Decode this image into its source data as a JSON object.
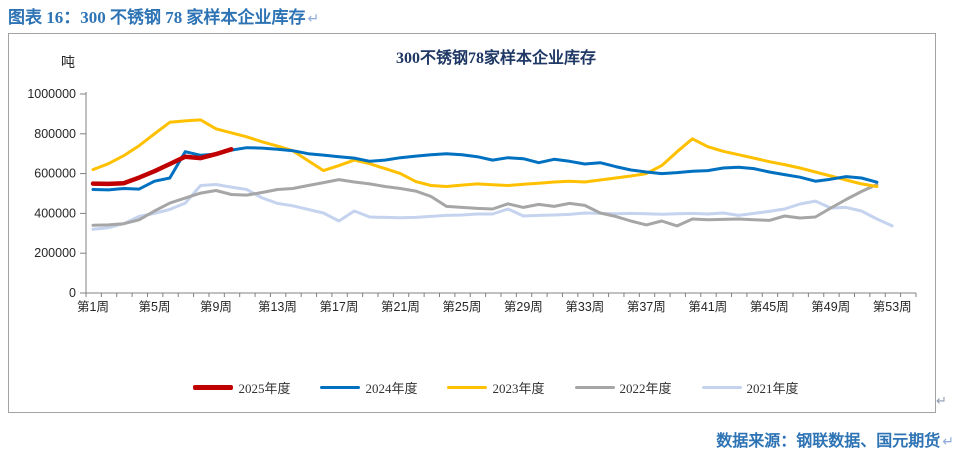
{
  "page": {
    "title": "图表 16：300 不锈钢 78 家样本企业库存",
    "pilcrow": "↵",
    "source": "数据来源：钢联数据、国元期货"
  },
  "colors": {
    "heading_blue": "#2E74B5",
    "chart_title_navy": "#1F3864",
    "axis": "#808080",
    "tick_text": "#262626",
    "box_border": "#A3A3A3"
  },
  "chart_data": {
    "type": "line",
    "title": "300不锈钢78家样本企业库存",
    "unit_label": "吨",
    "xlabel": "",
    "ylabel": "吨",
    "ylim": [
      0,
      1000000
    ],
    "yticks": [
      0,
      200000,
      400000,
      600000,
      800000,
      1000000
    ],
    "weeks_total": 53,
    "xtick_weeks": [
      1,
      5,
      9,
      13,
      17,
      21,
      25,
      29,
      33,
      37,
      41,
      45,
      49,
      53
    ],
    "xtick_labels": [
      "第1周",
      "第5周",
      "第9周",
      "第13周",
      "第17周",
      "第21周",
      "第25周",
      "第29周",
      "第33周",
      "第37周",
      "第41周",
      "第45周",
      "第49周",
      "第53周"
    ],
    "grid": false,
    "legend_position": "bottom",
    "series": [
      {
        "name": "2025年度",
        "color": "#C00000",
        "stroke_width": 4.5,
        "start_week": 1,
        "values": [
          550000,
          548000,
          552000,
          580000,
          612000,
          648000,
          685000,
          678000,
          698000,
          722000
        ]
      },
      {
        "name": "2024年度",
        "color": "#0070C0",
        "stroke_width": 3,
        "start_week": 1,
        "values": [
          520000,
          518000,
          525000,
          522000,
          562000,
          578000,
          710000,
          692000,
          698000,
          718000,
          730000,
          728000,
          722000,
          715000,
          700000,
          693000,
          685000,
          678000,
          662000,
          668000,
          680000,
          688000,
          695000,
          700000,
          695000,
          685000,
          668000,
          680000,
          675000,
          655000,
          672000,
          662000,
          648000,
          655000,
          635000,
          618000,
          608000,
          600000,
          605000,
          612000,
          615000,
          628000,
          632000,
          625000,
          608000,
          595000,
          582000,
          562000,
          572000,
          585000,
          578000,
          557000
        ]
      },
      {
        "name": "2023年度",
        "color": "#FFC000",
        "stroke_width": 3,
        "start_week": 1,
        "values": [
          620000,
          650000,
          690000,
          740000,
          800000,
          858000,
          865000,
          870000,
          825000,
          805000,
          785000,
          760000,
          738000,
          715000,
          665000,
          615000,
          640000,
          668000,
          650000,
          625000,
          600000,
          560000,
          540000,
          535000,
          542000,
          548000,
          544000,
          540000,
          546000,
          552000,
          558000,
          562000,
          558000,
          568000,
          578000,
          588000,
          600000,
          640000,
          710000,
          775000,
          735000,
          712000,
          695000,
          678000,
          660000,
          645000,
          628000,
          608000,
          588000,
          568000,
          548000,
          535000
        ]
      },
      {
        "name": "2022年度",
        "color": "#A6A6A6",
        "stroke_width": 3,
        "start_week": 1,
        "values": [
          340000,
          342000,
          348000,
          368000,
          412000,
          452000,
          477000,
          502000,
          515000,
          495000,
          492000,
          505000,
          520000,
          525000,
          540000,
          555000,
          570000,
          558000,
          548000,
          535000,
          525000,
          512000,
          485000,
          435000,
          430000,
          425000,
          422000,
          448000,
          430000,
          445000,
          435000,
          450000,
          440000,
          402000,
          385000,
          362000,
          342000,
          362000,
          337000,
          372000,
          368000,
          370000,
          372000,
          368000,
          365000,
          387000,
          377000,
          382000,
          427000,
          470000,
          510000,
          545000
        ]
      },
      {
        "name": "2021年度",
        "color": "#C5D3EE",
        "stroke_width": 3,
        "start_week": 1,
        "values": [
          320000,
          328000,
          348000,
          385000,
          400000,
          420000,
          452000,
          540000,
          545000,
          532000,
          520000,
          478000,
          450000,
          438000,
          420000,
          402000,
          362000,
          412000,
          382000,
          380000,
          378000,
          380000,
          385000,
          390000,
          392000,
          397000,
          397000,
          422000,
          387000,
          390000,
          392000,
          395000,
          402000,
          400000,
          398000,
          400000,
          398000,
          396000,
          398000,
          400000,
          397000,
          402000,
          390000,
          400000,
          410000,
          422000,
          447000,
          462000,
          427000,
          430000,
          412000,
          372000,
          337000
        ]
      }
    ]
  }
}
